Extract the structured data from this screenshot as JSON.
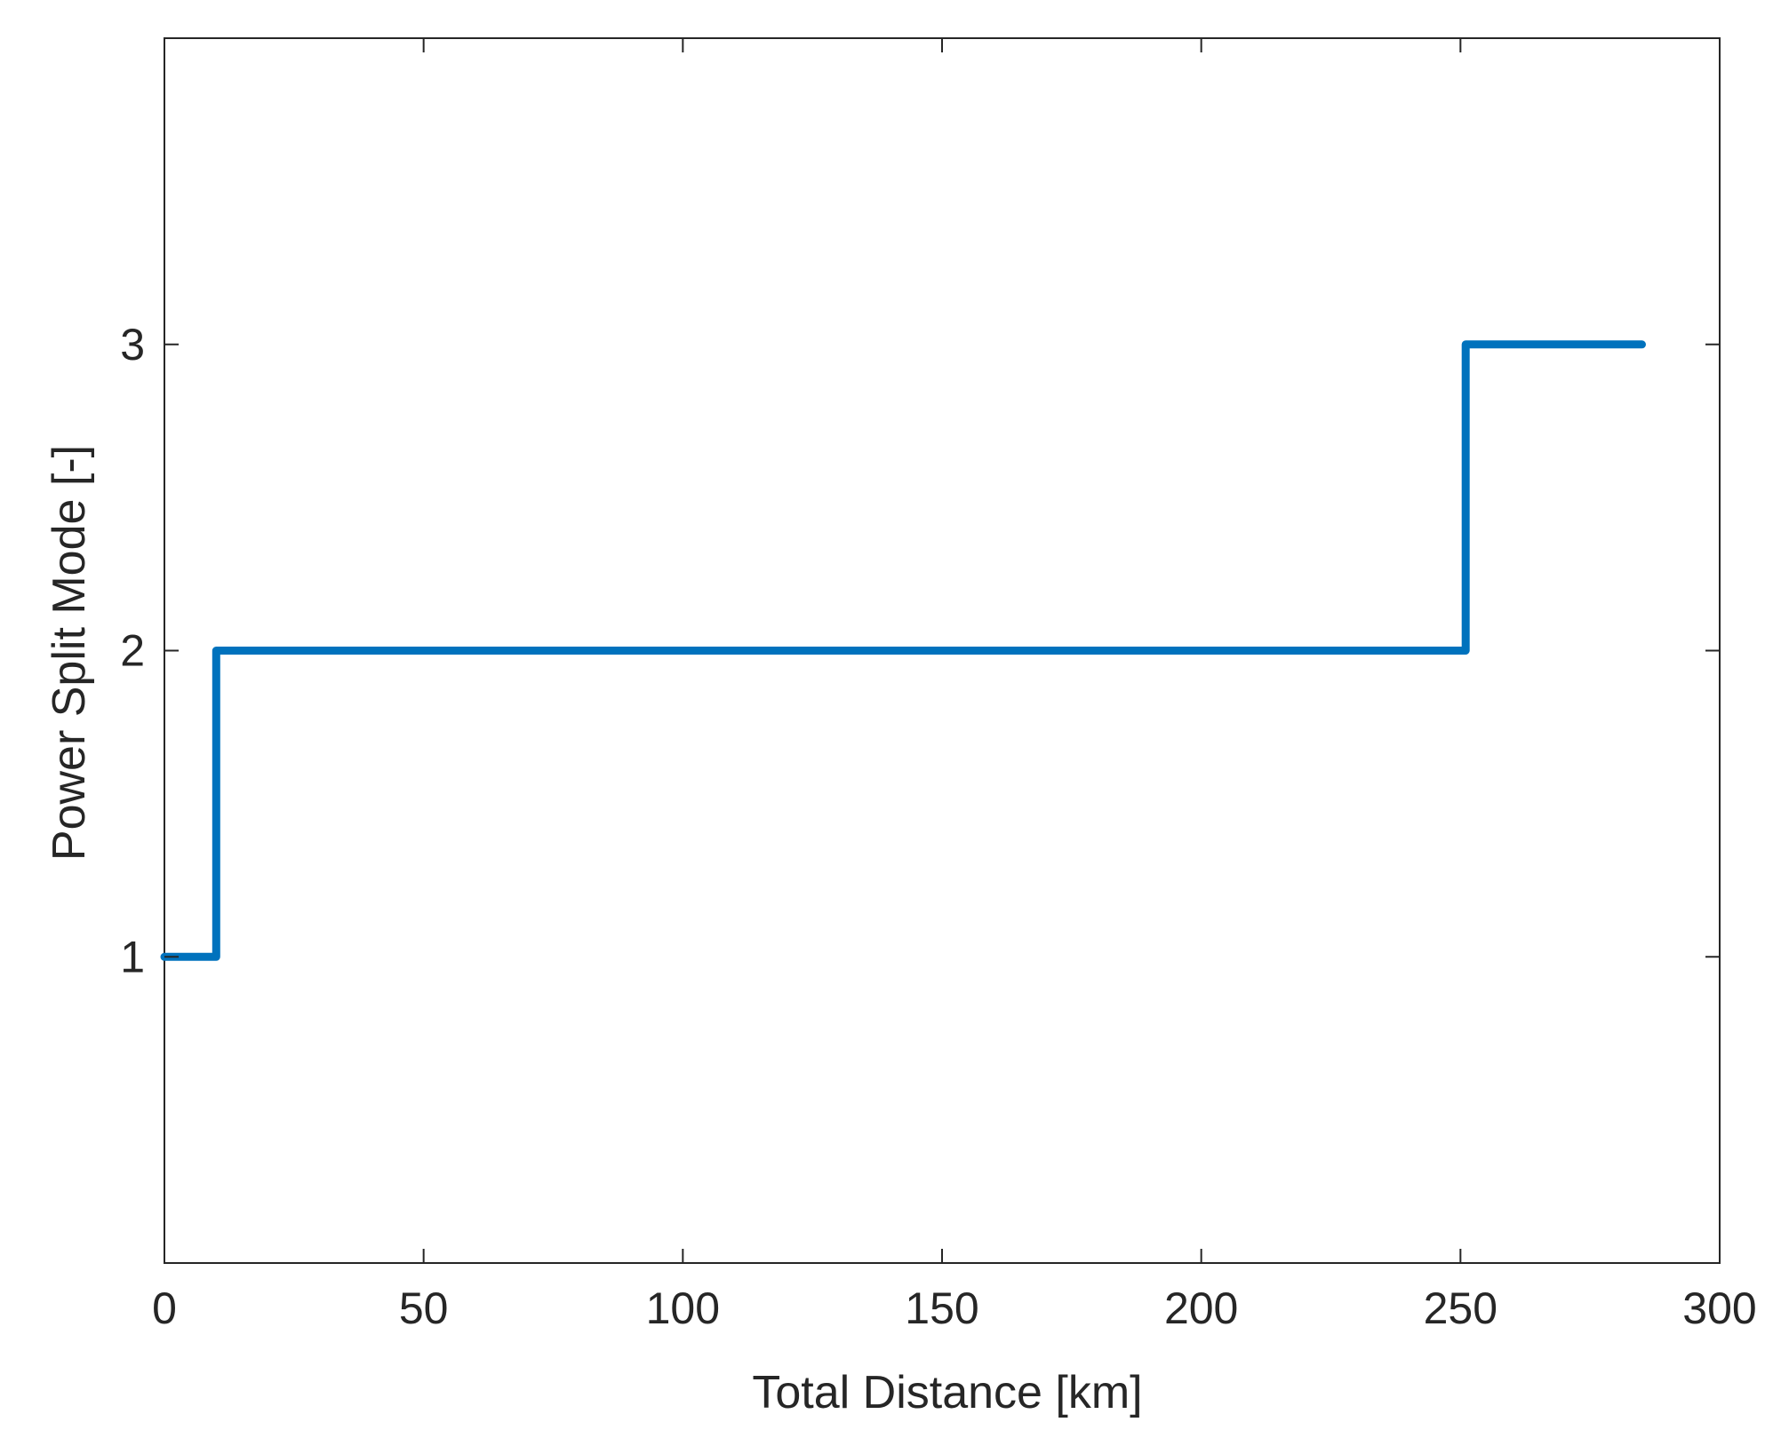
{
  "chart_data": {
    "type": "line",
    "title": "",
    "xlabel": "Total Distance [km]",
    "ylabel": "Power Split Mode [-]",
    "xlim": [
      0,
      300
    ],
    "ylim": [
      0,
      4
    ],
    "xticks": [
      0,
      50,
      100,
      150,
      200,
      250,
      300
    ],
    "yticks": [
      1,
      2,
      3
    ],
    "xtick_labels": [
      "0",
      "50",
      "100",
      "150",
      "200",
      "250",
      "300"
    ],
    "ytick_labels": [
      "1",
      "2",
      "3"
    ],
    "grid": false,
    "line_shape": "step",
    "series": [
      {
        "color": "#0072BD",
        "x": [
          0,
          10,
          10,
          251,
          251,
          285
        ],
        "y": [
          1,
          1,
          2,
          2,
          3,
          3
        ]
      }
    ]
  }
}
